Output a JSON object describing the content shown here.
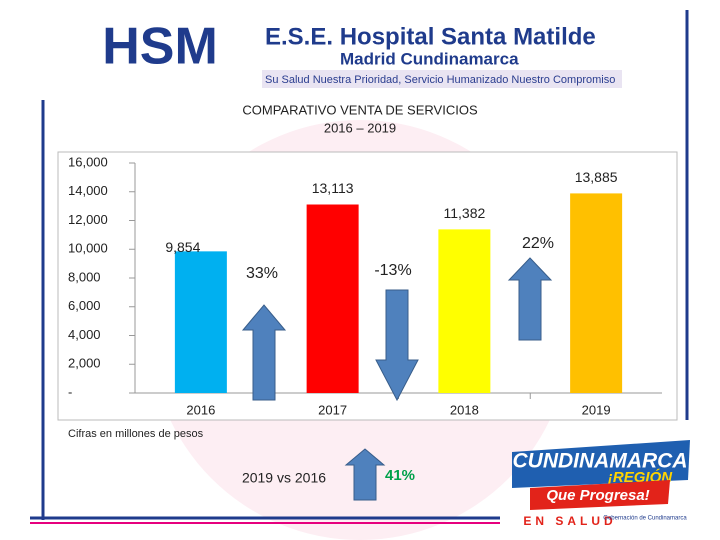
{
  "header": {
    "title": "E.S.E. Hospital Santa Matilde",
    "subtitle": "Madrid Cundinamarca",
    "slogan": "Su Salud Nuestra Prioridad, Servicio Humanizado Nuestro Compromiso",
    "logo": "HSM"
  },
  "chart_data": {
    "type": "bar",
    "title": "COMPARATIVO VENTA DE SERVICIOS",
    "subtitle": "2016 – 2019",
    "categories": [
      "2016",
      "2017",
      "2018",
      "2019"
    ],
    "values": [
      9854,
      13113,
      11382,
      13885
    ],
    "value_labels": [
      "9,854",
      "13,113",
      "11,382",
      "13,885"
    ],
    "colors": [
      "#00b0f0",
      "#ff0000",
      "#ffff00",
      "#ffc000"
    ],
    "ylim": [
      0,
      16000
    ],
    "yticks": [
      {
        "value": 0,
        "label": "-"
      },
      {
        "value": 2000,
        "label": "2,000"
      },
      {
        "value": 4000,
        "label": "4,000"
      },
      {
        "value": 6000,
        "label": "6,000"
      },
      {
        "value": 8000,
        "label": "8,000"
      },
      {
        "value": 10000,
        "label": "10,000"
      },
      {
        "value": 12000,
        "label": "12,000"
      },
      {
        "value": 14000,
        "label": "14,000"
      },
      {
        "value": 16000,
        "label": "16,000"
      }
    ],
    "annotations": [
      "33%",
      "-13%",
      "22%"
    ],
    "note": "Cifras en millones de pesos",
    "comparison": "2019 vs 2016",
    "comparison_value": "41%"
  },
  "footer_logo": {
    "name": "CUNDINAMARCA",
    "line1": "¡REGIÓN",
    "line2": "Que Progresa!",
    "line3": "EN SALUD",
    "gov": "Gobernación de Cundinamarca"
  }
}
